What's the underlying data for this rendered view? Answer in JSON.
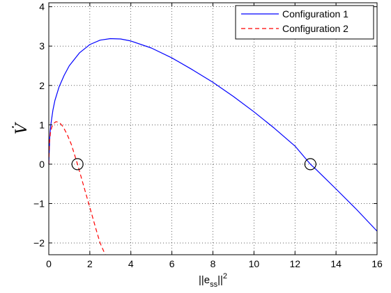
{
  "chart_data": {
    "type": "line",
    "xlabel": {
      "base": "||e",
      "subscript": "ss",
      "suffix": "||",
      "superscript": "2"
    },
    "ylabel": "V̇",
    "xlim": [
      0,
      16
    ],
    "ylim": [
      -2.3,
      4.1
    ],
    "xticks": [
      0,
      2,
      4,
      6,
      8,
      10,
      12,
      14,
      16
    ],
    "yticks": [
      -2,
      -1,
      0,
      1,
      2,
      3,
      4
    ],
    "ytick_labels": [
      "−2",
      "−1",
      "0",
      "1",
      "2",
      "3",
      "4"
    ],
    "grid": true,
    "legend_position": "top-right",
    "series": [
      {
        "name": "Configuration 1",
        "color": "#0000ff",
        "style": "solid",
        "x": [
          0,
          0.05,
          0.1,
          0.2,
          0.3,
          0.5,
          0.75,
          1.0,
          1.5,
          2.0,
          2.5,
          3.0,
          3.5,
          4.0,
          5.0,
          6.0,
          7.0,
          8.0,
          9.0,
          10.0,
          11.0,
          12.0,
          12.75,
          13.0,
          14.0,
          15.0,
          16.0
        ],
        "y": [
          0,
          0.72,
          1.0,
          1.37,
          1.62,
          1.96,
          2.26,
          2.5,
          2.83,
          3.04,
          3.15,
          3.19,
          3.18,
          3.13,
          2.95,
          2.7,
          2.4,
          2.08,
          1.72,
          1.33,
          0.91,
          0.46,
          0.0,
          -0.12,
          -0.63,
          -1.15,
          -1.7
        ]
      },
      {
        "name": "Configuration 2",
        "color": "#ff0000",
        "style": "dashed",
        "x": [
          0,
          0.03,
          0.08,
          0.15,
          0.25,
          0.35,
          0.45,
          0.55,
          0.7,
          0.9,
          1.1,
          1.4,
          1.7,
          2.0,
          2.3,
          2.5,
          2.75
        ],
        "y": [
          0,
          0.55,
          0.8,
          0.95,
          1.04,
          1.08,
          1.07,
          1.04,
          0.95,
          0.75,
          0.5,
          0.0,
          -0.55,
          -1.1,
          -1.65,
          -2.0,
          -2.3
        ]
      }
    ],
    "markers": [
      {
        "x": 1.4,
        "y": 0,
        "shape": "open-circle"
      },
      {
        "x": 12.75,
        "y": 0,
        "shape": "open-circle"
      }
    ]
  }
}
